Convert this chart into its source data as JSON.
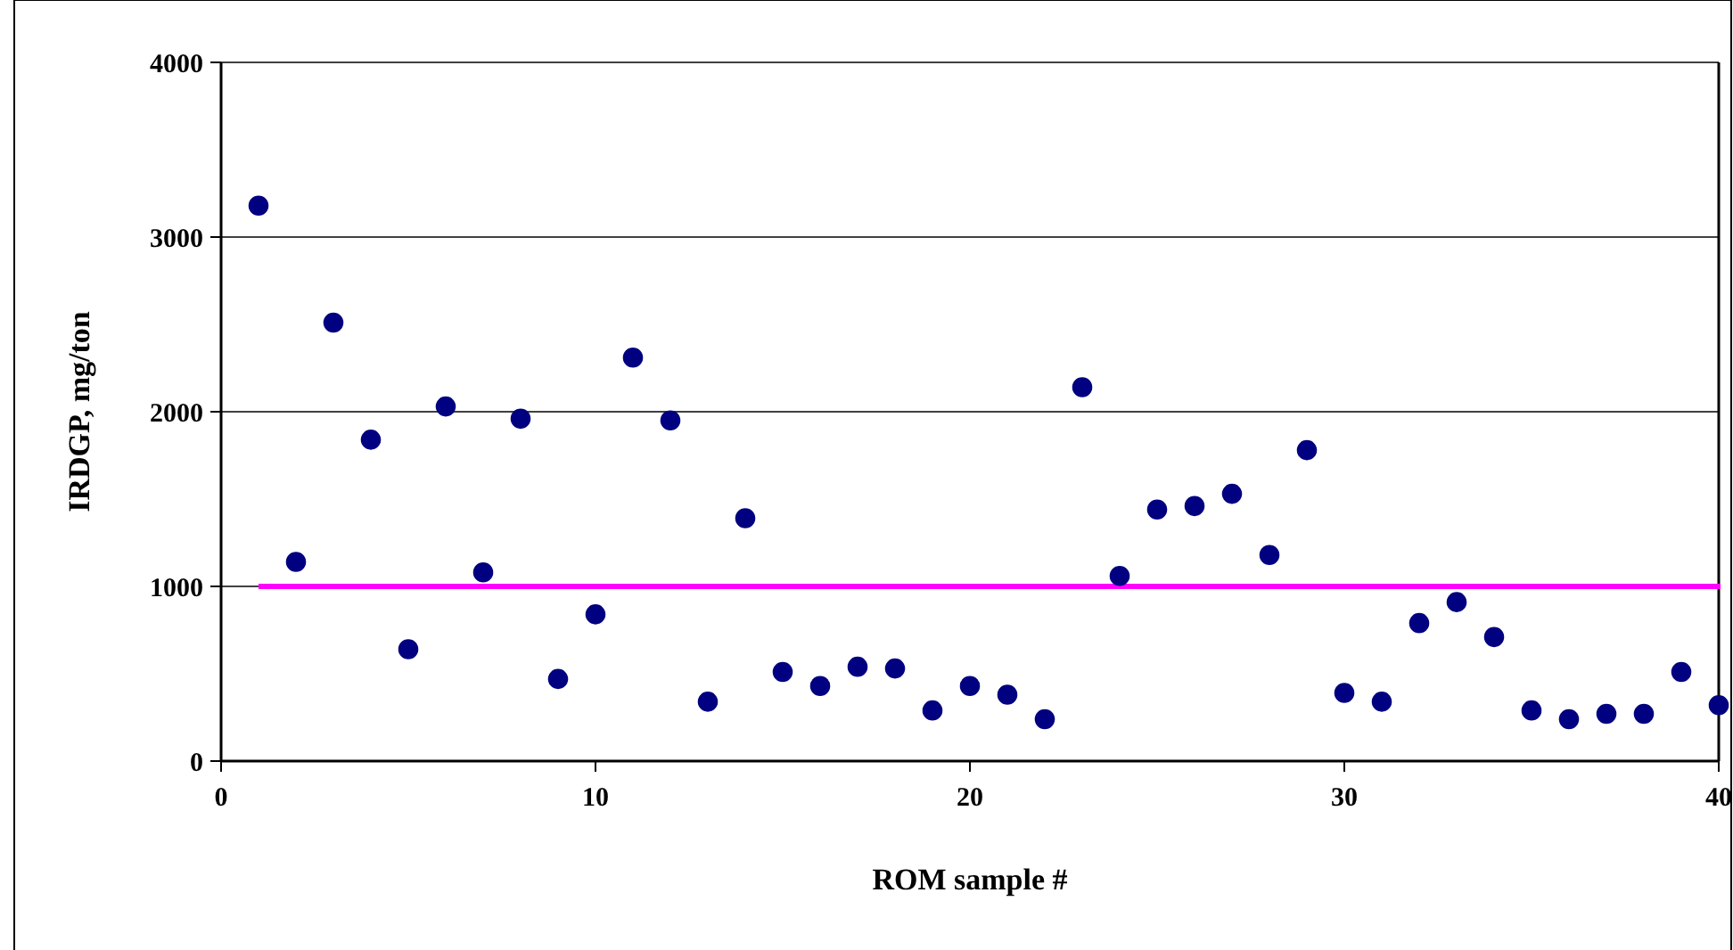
{
  "chart_data": {
    "type": "scatter",
    "xlabel": "ROM sample #",
    "ylabel": "IRDGP, mg/ton",
    "x": [
      1,
      2,
      3,
      4,
      5,
      6,
      7,
      8,
      9,
      10,
      11,
      12,
      13,
      14,
      15,
      16,
      17,
      18,
      19,
      20,
      21,
      22,
      23,
      24,
      25,
      26,
      27,
      28,
      29,
      30,
      31,
      32,
      33,
      34,
      35,
      36,
      37,
      38,
      39,
      40
    ],
    "values": [
      3180,
      1140,
      2510,
      1840,
      640,
      2030,
      1080,
      1960,
      470,
      840,
      2310,
      1950,
      340,
      1390,
      510,
      430,
      540,
      530,
      290,
      430,
      380,
      240,
      2140,
      1060,
      1440,
      1460,
      1530,
      1180,
      1780,
      390,
      340,
      790,
      910,
      710,
      290,
      240,
      270,
      270,
      510,
      320
    ],
    "color": "#000080",
    "marker": "circle",
    "xlim": [
      0,
      40
    ],
    "xticks": [
      0,
      10,
      20,
      30,
      40
    ],
    "ylim": [
      0,
      4000
    ],
    "yticks": [
      0,
      1000,
      2000,
      3000,
      4000
    ],
    "grid": "y",
    "ref_lines": [
      {
        "axis": "y",
        "value": 1000,
        "color": "#ff00ff",
        "line_style": "solid"
      }
    ]
  }
}
